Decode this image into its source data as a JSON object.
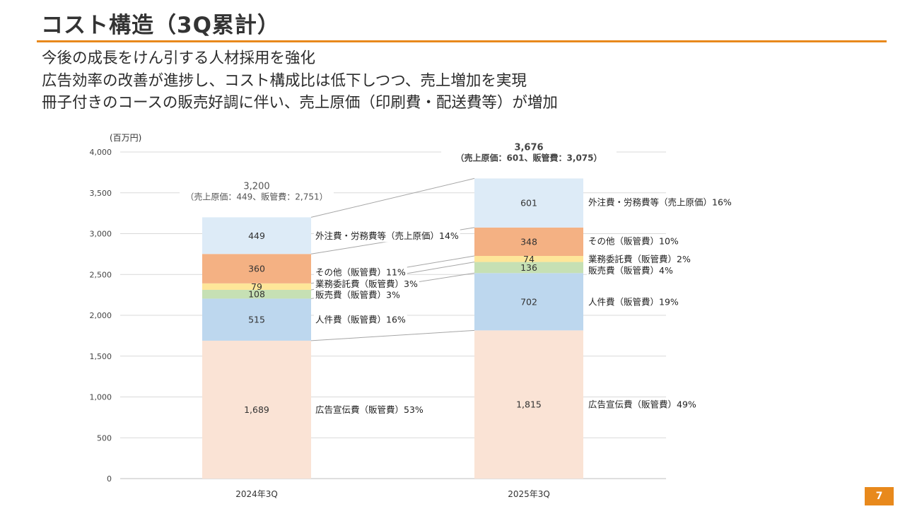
{
  "slide": {
    "title": "コスト構造（3Q累計）",
    "bullets": [
      "今後の成長をけん引する人材採用を強化",
      "広告効率の改善が進捗し、コスト構成比は低下しつつ、売上増加を実現",
      "冊子付きのコースの販売好調に伴い、売上原価（印刷費・配送費等）が増加"
    ],
    "page_number": "7"
  },
  "chart_data": {
    "type": "bar",
    "stacked": true,
    "unit_label": "(百万円)",
    "ylim": [
      0,
      4000
    ],
    "yticks": [
      {
        "value": 0,
        "label": "0"
      },
      {
        "value": 500,
        "label": "500"
      },
      {
        "value": 1000,
        "label": "1,000"
      },
      {
        "value": 1500,
        "label": "1,500"
      },
      {
        "value": 2000,
        "label": "2,000"
      },
      {
        "value": 2500,
        "label": "2,500"
      },
      {
        "value": 3000,
        "label": "3,000"
      },
      {
        "value": 3500,
        "label": "3,500"
      },
      {
        "value": 4000,
        "label": "4,000"
      }
    ],
    "grid": true,
    "categories": [
      "2024年3Q",
      "2025年3Q"
    ],
    "series": [
      {
        "key": "ad",
        "color": "#fae3d5",
        "values": [
          1689,
          1815
        ],
        "value_labels": [
          "1,689",
          "1,815"
        ],
        "legend": [
          "広告宣伝費（販管費）53%",
          "広告宣伝費（販管費）49%"
        ]
      },
      {
        "key": "personnel",
        "color": "#bdd7ee",
        "values": [
          515,
          702
        ],
        "value_labels": [
          "515",
          "702"
        ],
        "legend": [
          "人件費（販管費）16%",
          "人件費（販管費）19%"
        ]
      },
      {
        "key": "sales",
        "color": "#c6e0b4",
        "values": [
          108,
          136
        ],
        "value_labels": [
          "108",
          "136"
        ],
        "legend": [
          "販売費（販管費）3%",
          "販売費（販管費）4%"
        ]
      },
      {
        "key": "outsourcing",
        "color": "#fee699",
        "values": [
          79,
          74
        ],
        "value_labels": [
          "79",
          "74"
        ],
        "legend": [
          "業務委託費（販管費）3%",
          "業務委託費（販管費）2%"
        ]
      },
      {
        "key": "other",
        "color": "#f4b183",
        "values": [
          360,
          348
        ],
        "value_labels": [
          "360",
          "348"
        ],
        "legend": [
          "その他（販管費）11%",
          "その他（販管費）10%"
        ]
      },
      {
        "key": "cogs",
        "color": "#ddebf7",
        "values": [
          449,
          601
        ],
        "value_labels": [
          "449",
          "601"
        ],
        "legend": [
          "外注費・労務費等（売上原価）14%",
          "外注費・労務費等（売上原価）16%"
        ]
      }
    ],
    "totals": [
      {
        "value": 3200,
        "label": "3,200",
        "sub": "（売上原価：449、販管費：2,751）"
      },
      {
        "value": 3676,
        "label": "3,676",
        "sub": "（売上原価：601、販管費：3,075）"
      }
    ]
  }
}
